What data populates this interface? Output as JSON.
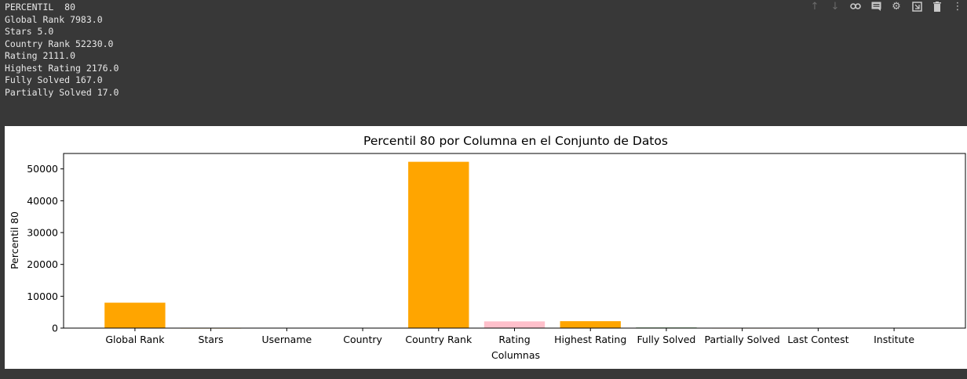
{
  "output": {
    "lines": [
      "PERCENTIL  80",
      "Global Rank 7983.0",
      "Stars 5.0",
      "Country Rank 52230.0",
      "Rating 2111.0",
      "Highest Rating 2176.0",
      "Fully Solved 167.0",
      "Partially Solved 17.0"
    ]
  },
  "toolbar": {
    "icons": [
      "arrow-up-icon",
      "arrow-down-icon",
      "link-icon",
      "comment-icon",
      "gear-icon",
      "mirror-cell-icon",
      "delete-icon",
      "more-icon"
    ]
  },
  "chart_data": {
    "type": "bar",
    "title": "Percentil 80 por Columna en el Conjunto de Datos",
    "xlabel": "Columnas",
    "ylabel": "Percentil 80",
    "categories": [
      "Global Rank",
      "Stars",
      "Username",
      "Country",
      "Country Rank",
      "Rating",
      "Highest Rating",
      "Fully Solved",
      "Partially Solved",
      "Last Contest",
      "Institute"
    ],
    "values": [
      7983.0,
      5.0,
      0,
      0,
      52230.0,
      2111.0,
      2176.0,
      167.0,
      17.0,
      0,
      0
    ],
    "colors": [
      "#ffa500",
      "#ffa500",
      "#ffa500",
      "#ffa500",
      "#ffa500",
      "#ffc0cb",
      "#ffa500",
      "#006400",
      "#ffa500",
      "#ffa500",
      "#ffa500"
    ],
    "yticks": [
      0,
      10000,
      20000,
      30000,
      40000,
      50000
    ],
    "ylim": [
      0,
      54841.5
    ],
    "grid": false
  }
}
